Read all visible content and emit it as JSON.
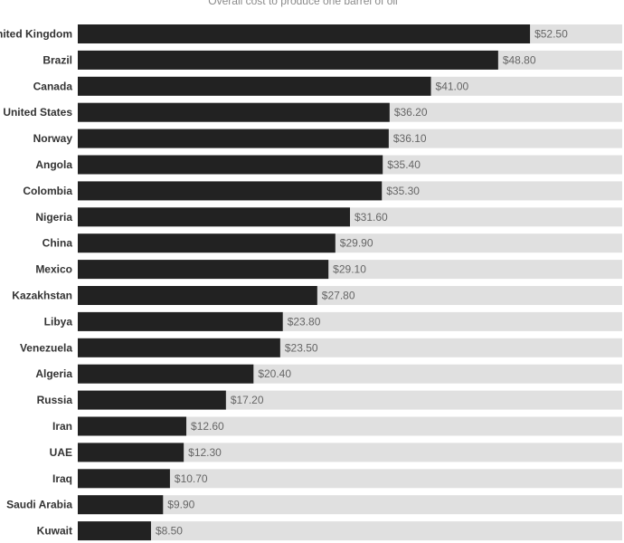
{
  "chart_data": {
    "type": "bar",
    "orientation": "horizontal",
    "title": "Overall cost to produce one barrel of oil",
    "categories": [
      "United Kingdom",
      "Brazil",
      "Canada",
      "United States",
      "Norway",
      "Angola",
      "Colombia",
      "Nigeria",
      "China",
      "Mexico",
      "Kazakhstan",
      "Libya",
      "Venezuela",
      "Algeria",
      "Russia",
      "Iran",
      "UAE",
      "Iraq",
      "Saudi Arabia",
      "Kuwait"
    ],
    "values": [
      52.5,
      48.8,
      41.0,
      36.2,
      36.1,
      35.4,
      35.3,
      31.6,
      29.9,
      29.1,
      27.8,
      23.8,
      23.5,
      20.4,
      17.2,
      12.6,
      12.3,
      10.7,
      9.9,
      8.5
    ],
    "value_labels": [
      "$52.50",
      "$48.80",
      "$41.00",
      "$36.20",
      "$36.10",
      "$35.40",
      "$35.30",
      "$31.60",
      "$29.90",
      "$29.10",
      "$27.80",
      "$23.80",
      "$23.50",
      "$20.40",
      "$17.20",
      "$12.60",
      "$12.30",
      "$10.70",
      "$9.90",
      "$8.50"
    ],
    "xlim": [
      0,
      63.2
    ],
    "grid": false,
    "legend": "none",
    "bar_color": "#222222",
    "track_color": "#e0e0e0"
  }
}
